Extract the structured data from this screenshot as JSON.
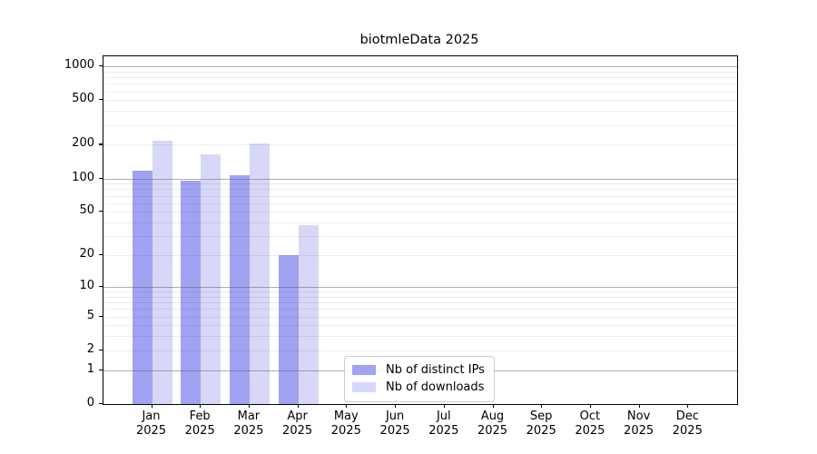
{
  "chart_data": {
    "type": "bar",
    "title": "biotmleData 2025",
    "categories": [
      "Jan",
      "Feb",
      "Mar",
      "Apr",
      "May",
      "Jun",
      "Jul",
      "Aug",
      "Sep",
      "Oct",
      "Nov",
      "Dec"
    ],
    "category_year": "2025",
    "series": [
      {
        "name": "Nb of distinct IPs",
        "color": "#a2a2f2",
        "values": [
          118,
          95,
          107,
          20,
          null,
          null,
          null,
          null,
          null,
          null,
          null,
          null
        ]
      },
      {
        "name": "Nb of downloads",
        "color": "#d7d7f8",
        "values": [
          218,
          165,
          206,
          38,
          null,
          null,
          null,
          null,
          null,
          null,
          null,
          null
        ]
      }
    ],
    "yscale": "log1p",
    "y_ticks": [
      0,
      1,
      2,
      5,
      10,
      20,
      50,
      100,
      200,
      500,
      1000
    ],
    "ylim": [
      0,
      1230
    ],
    "grid": "on",
    "legend_position": "lower-center",
    "colors": {
      "major_grid": "#b3b3b3",
      "minor_grid": "#ededed",
      "axis": "#000000",
      "text": "#000000"
    }
  }
}
